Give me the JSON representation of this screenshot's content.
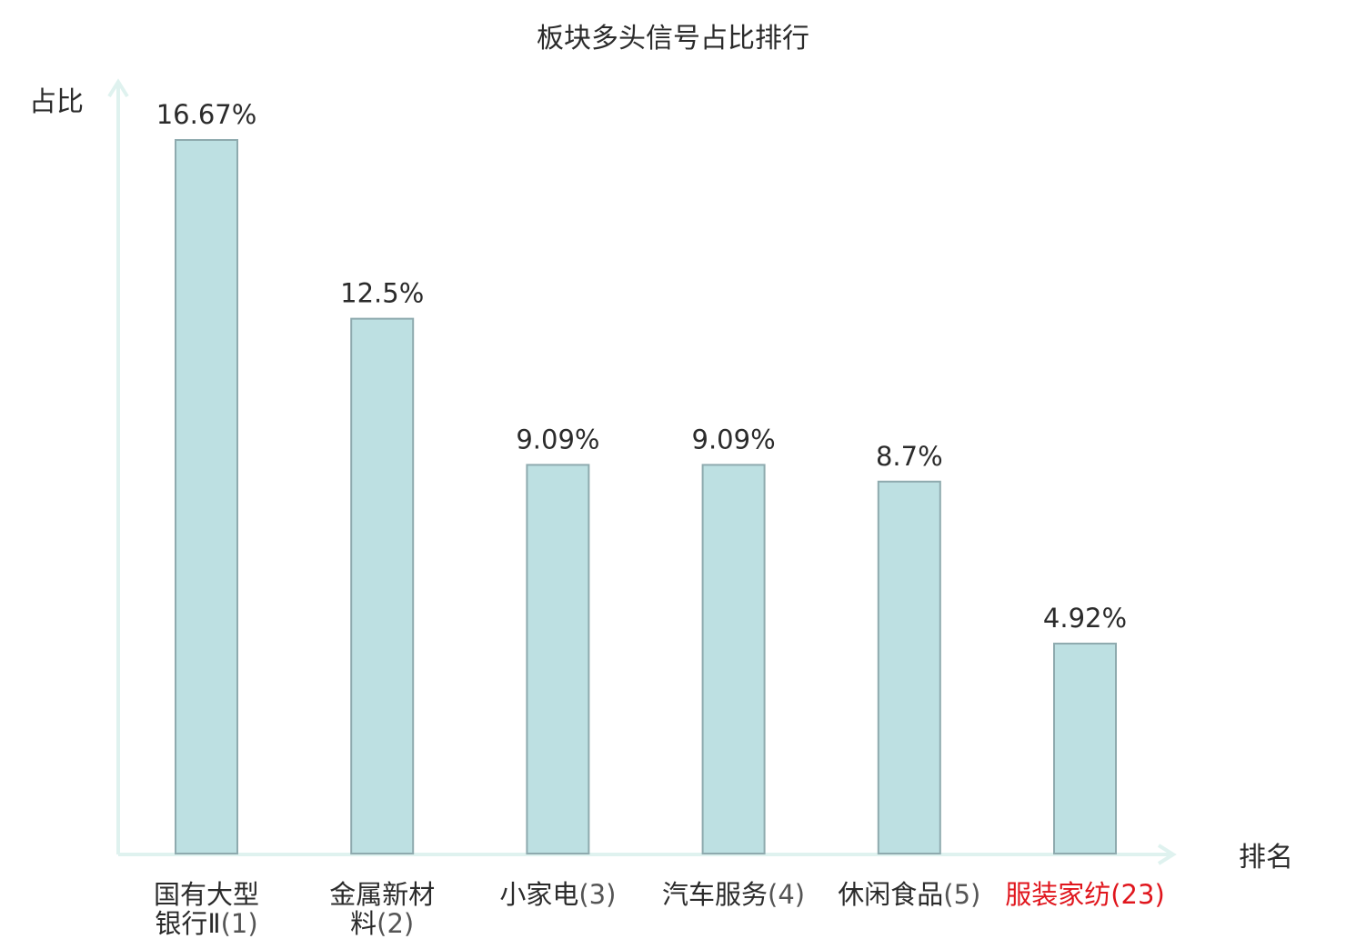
{
  "chart_data": {
    "type": "bar",
    "title": "板块多头信号占比排行",
    "ylabel": "占比",
    "xlabel": "排名",
    "ylim": [
      0,
      18
    ],
    "grid": false,
    "categories": [
      {
        "name_lines": [
          "国有大型",
          "银行Ⅱ"
        ],
        "rank": "(1)",
        "highlight": false
      },
      {
        "name_lines": [
          "金属新材",
          "料"
        ],
        "rank": "(2)",
        "highlight": false
      },
      {
        "name_lines": [
          "小家电"
        ],
        "rank": "(3)",
        "highlight": false
      },
      {
        "name_lines": [
          "汽车服务"
        ],
        "rank": "(4)",
        "highlight": false
      },
      {
        "name_lines": [
          "休闲食品"
        ],
        "rank": "(5)",
        "highlight": false
      },
      {
        "name_lines": [
          "服装家纺"
        ],
        "rank": "(23)",
        "highlight": true
      }
    ],
    "values": [
      16.67,
      12.5,
      9.09,
      9.09,
      8.7,
      4.92
    ],
    "value_labels": [
      "16.67%",
      "12.5%",
      "9.09%",
      "9.09%",
      "8.7%",
      "4.92%"
    ]
  },
  "colors": {
    "bar_fill": "#bde0e2",
    "bar_stroke": "#8eaaae",
    "axis": "#dff2ef",
    "text": "#2b2b2b",
    "rank_text": "#555555",
    "highlight": "#e0161d"
  }
}
